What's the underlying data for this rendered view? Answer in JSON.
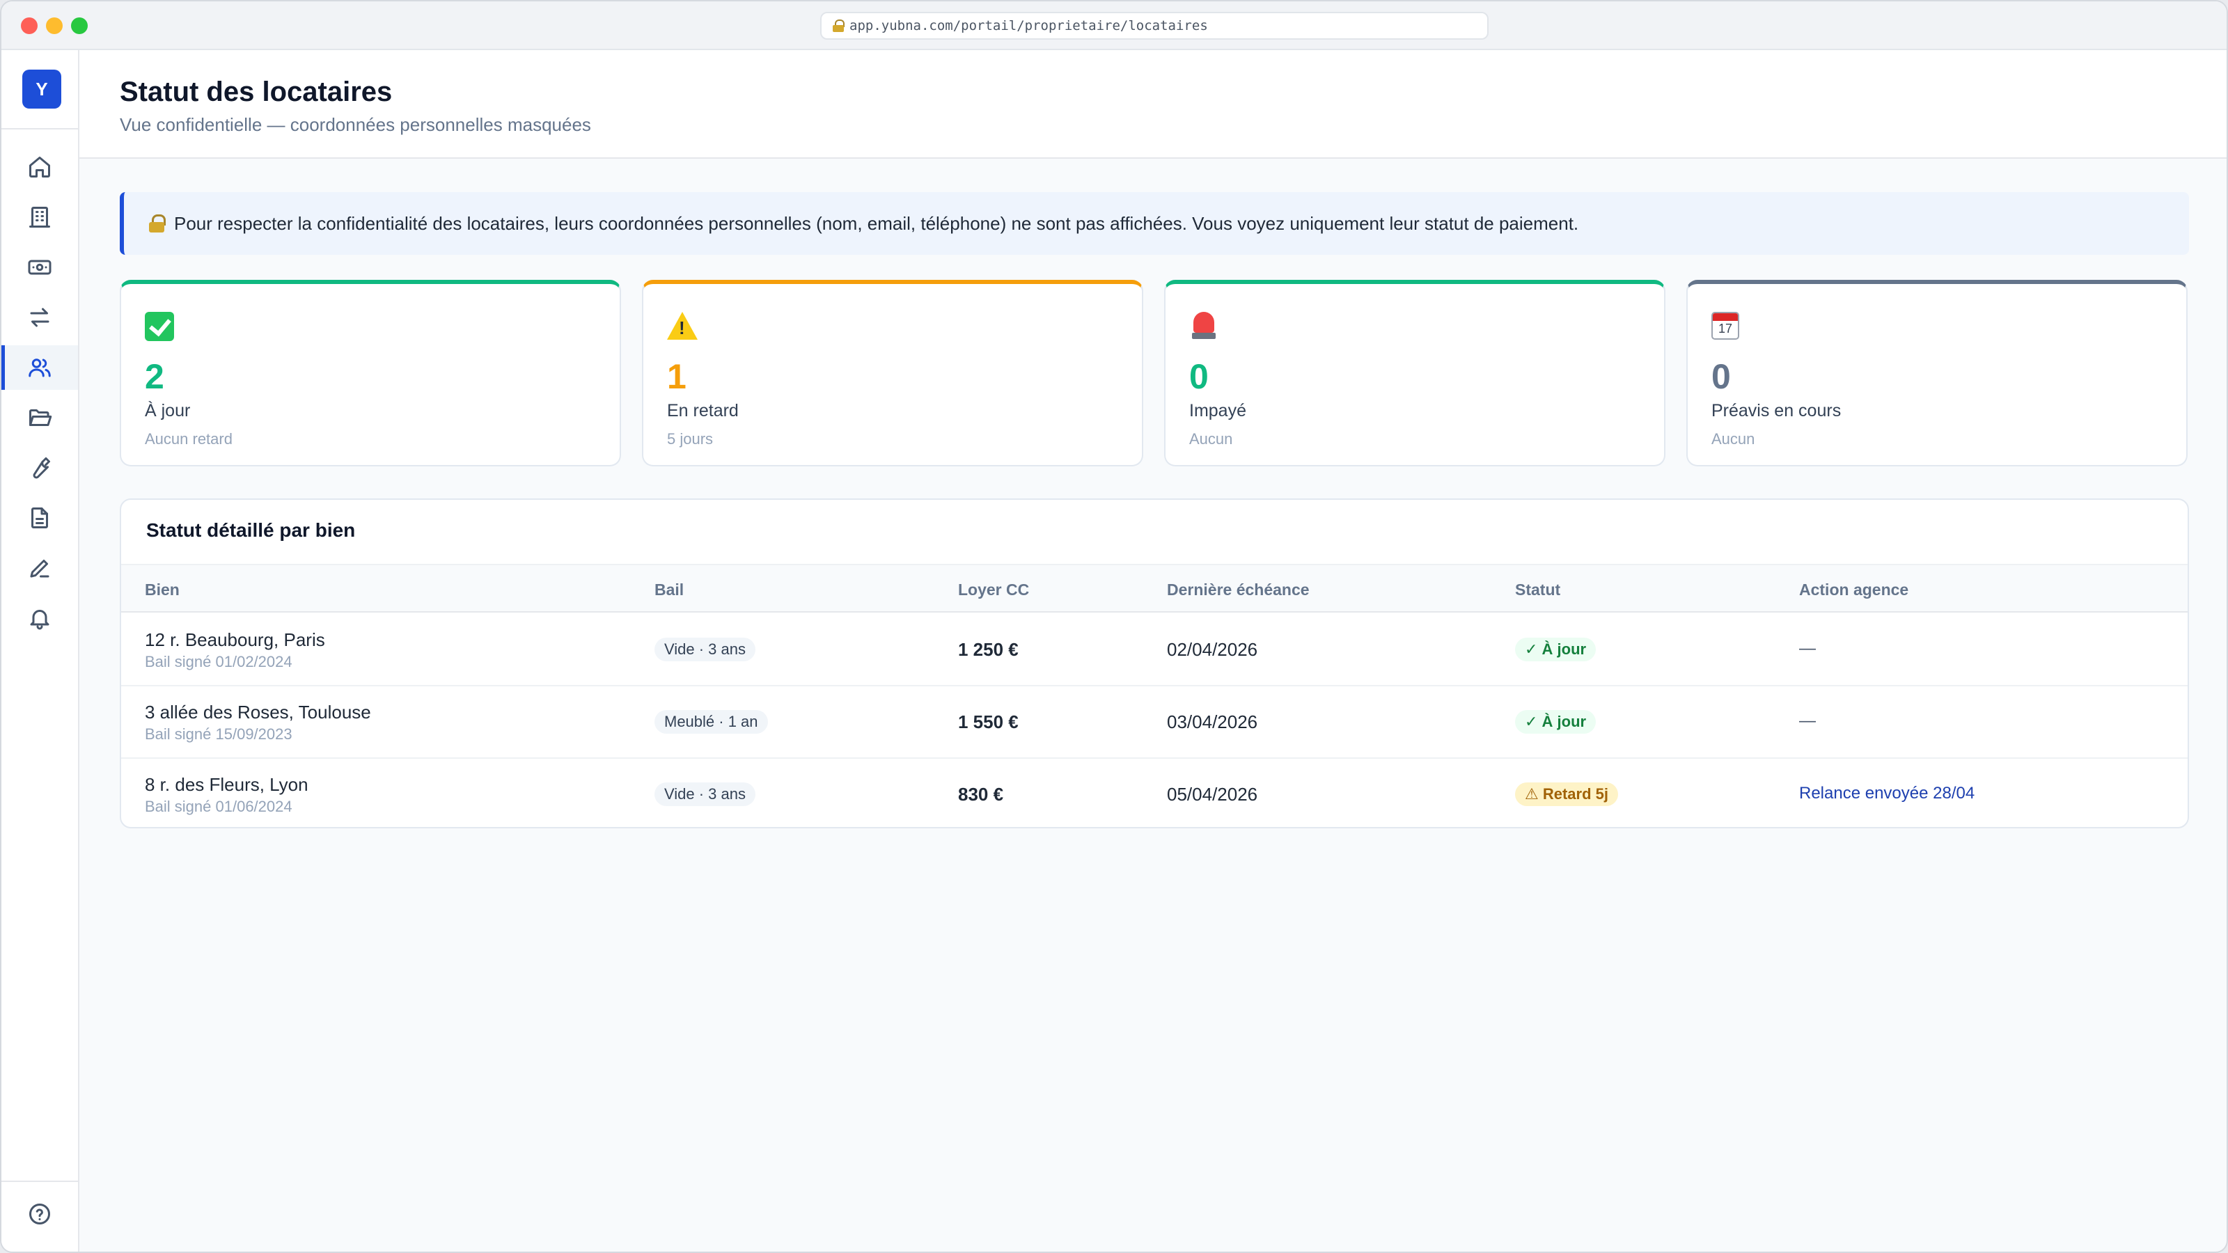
{
  "browser": {
    "url": "app.yubna.com/portail/proprietaire/locataires"
  },
  "sidebar": {
    "logo": "Y",
    "items": [
      {
        "icon": "home-icon"
      },
      {
        "icon": "building-icon"
      },
      {
        "icon": "banknote-icon"
      },
      {
        "icon": "transfer-icon"
      },
      {
        "icon": "users-icon",
        "active": true
      },
      {
        "icon": "folder-icon"
      },
      {
        "icon": "wrench-icon"
      },
      {
        "icon": "document-icon"
      },
      {
        "icon": "pen-icon"
      },
      {
        "icon": "bell-icon"
      }
    ],
    "help_icon": "help-circle-icon"
  },
  "header": {
    "title": "Statut des locataires",
    "subtitle": "Vue confidentielle — coordonnées personnelles masquées"
  },
  "notice": {
    "icon": "lock-icon",
    "text": "Pour respecter la confidentialité des locataires, leurs coordonnées personnelles (nom, email, téléphone) ne sont pas affichées. Vous voyez uniquement leur statut de paiement."
  },
  "stats": [
    {
      "icon": "check-icon",
      "value": "2",
      "label": "À jour",
      "sub": "Aucun retard",
      "color": "#10b981"
    },
    {
      "icon": "warning-icon",
      "value": "1",
      "label": "En retard",
      "sub": "5 jours",
      "color": "#f59e0b"
    },
    {
      "icon": "siren-icon",
      "value": "0",
      "label": "Impayé",
      "sub": "Aucun",
      "color": "#10b981"
    },
    {
      "icon": "calendar-icon",
      "value": "0",
      "label": "Préavis en cours",
      "sub": "Aucun",
      "color": "#64748b",
      "calendar_day": "17"
    }
  ],
  "table": {
    "title": "Statut détaillé par bien",
    "columns": [
      "Bien",
      "Bail",
      "Loyer CC",
      "Dernière échéance",
      "Statut",
      "Action agence"
    ],
    "rows": [
      {
        "address": "12 r. Beaubourg, Paris",
        "signed": "Bail signé 01/02/2024",
        "bail": "Vide · 3 ans",
        "rent": "1 250 €",
        "due": "02/04/2026",
        "status": "✓ À jour",
        "status_type": "ok",
        "action": "—"
      },
      {
        "address": "3 allée des Roses, Toulouse",
        "signed": "Bail signé 15/09/2023",
        "bail": "Meublé · 1 an",
        "rent": "1 550 €",
        "due": "03/04/2026",
        "status": "✓ À jour",
        "status_type": "ok",
        "action": "—"
      },
      {
        "address": "8 r. des Fleurs, Lyon",
        "signed": "Bail signé 01/06/2024",
        "bail": "Vide · 3 ans",
        "rent": "830 €",
        "due": "05/04/2026",
        "status": "⚠ Retard 5j",
        "status_type": "late",
        "action": "Relance envoyée 28/04"
      }
    ]
  },
  "colors": {
    "accent": "#1d4ed8",
    "success": "#10b981",
    "warning": "#f59e0b",
    "neutral": "#64748b"
  }
}
